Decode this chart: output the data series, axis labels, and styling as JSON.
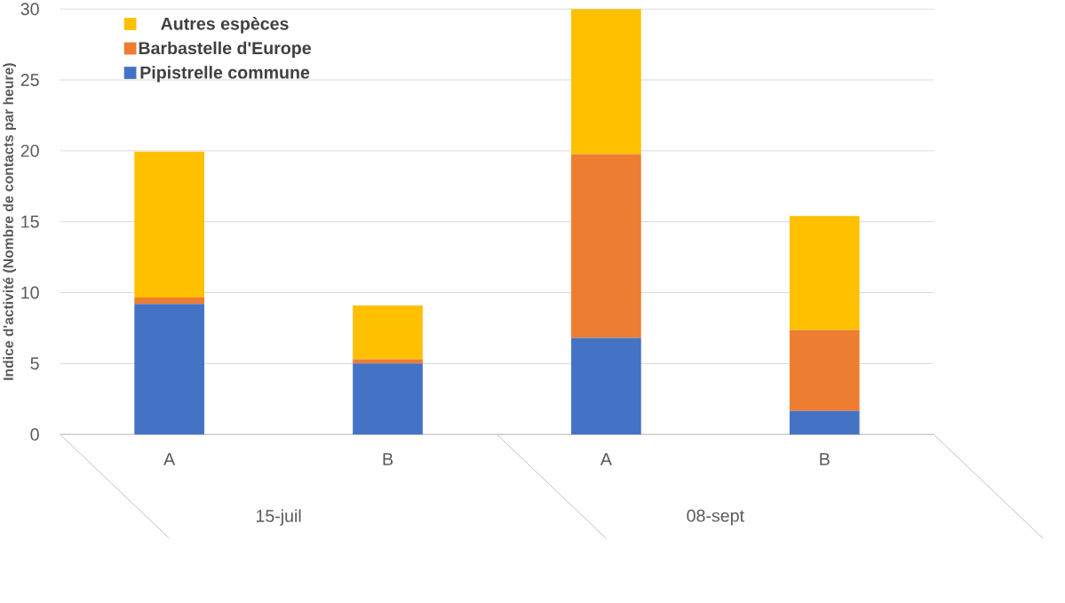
{
  "chart_data": {
    "type": "bar",
    "stacked": true,
    "ylabel": "Indice d'activité (Nombre de contacts par heure)",
    "categories": [
      "A",
      "B",
      "A",
      "B"
    ],
    "annotations": [
      "15-juil",
      "08-sept"
    ],
    "series": [
      {
        "name": "Pipistrelle commune",
        "color": "#4472c4",
        "values": [
          9.2,
          5.0,
          6.8,
          1.65
        ]
      },
      {
        "name": "Barbastelle d'Europe",
        "color": "#ed7d31",
        "values": [
          0.45,
          0.3,
          12.95,
          5.7
        ]
      },
      {
        "name": "Autres espèces",
        "color": "#ffc000",
        "values": [
          10.3,
          3.8,
          10.25,
          8.05
        ]
      }
    ],
    "ylim": [
      0,
      30
    ],
    "yticks": [
      0,
      5,
      10,
      15,
      20,
      25,
      30
    ],
    "grid": "y",
    "legend": "top left"
  }
}
